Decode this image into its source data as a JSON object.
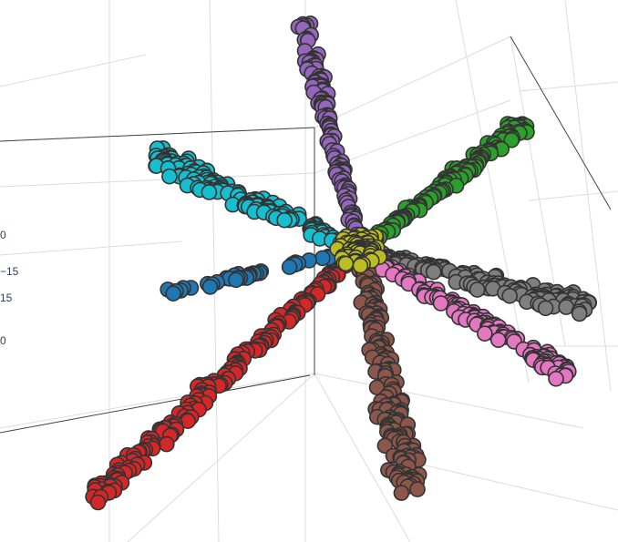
{
  "chart_data": {
    "type": "scatter",
    "title": "",
    "xlabel": "",
    "ylabel": "",
    "zlabel": "",
    "projection": "3d",
    "grid": true,
    "legend": "none",
    "tick_labels": [
      "0",
      "−15",
      "15",
      "0"
    ],
    "series": [
      {
        "color": "#9467bd",
        "direction": [
          -0.25,
          -1.0,
          0.05
        ],
        "length": 260,
        "spread": 9,
        "n": 130
      },
      {
        "color": "#2ca02c",
        "direction": [
          0.8,
          -0.62,
          0.0
        ],
        "length": 230,
        "spread": 10,
        "n": 150
      },
      {
        "color": "#17becf",
        "direction": [
          -0.92,
          -0.42,
          0.0
        ],
        "length": 250,
        "spread": 13,
        "n": 150
      },
      {
        "color": "#1f77b4",
        "direction": [
          -1.0,
          0.22,
          0.0
        ],
        "length": 220,
        "spread": 4,
        "n": 45
      },
      {
        "color": "#7f7f7f",
        "direction": [
          1.0,
          0.25,
          0.0
        ],
        "length": 260,
        "spread": 12,
        "n": 140
      },
      {
        "color": "#e377c2",
        "direction": [
          0.93,
          0.55,
          0.0
        ],
        "length": 270,
        "spread": 12,
        "n": 140
      },
      {
        "color": "#d62728",
        "direction": [
          -0.86,
          0.8,
          0.0
        ],
        "length": 400,
        "spread": 13,
        "n": 190
      },
      {
        "color": "#8c564b",
        "direction": [
          0.2,
          1.0,
          0.0
        ],
        "length": 270,
        "spread": 20,
        "n": 180
      },
      {
        "color": "#bcbd22",
        "direction": [
          0.0,
          0.0,
          1.0
        ],
        "length": 30,
        "spread": 12,
        "n": 70
      }
    ]
  }
}
